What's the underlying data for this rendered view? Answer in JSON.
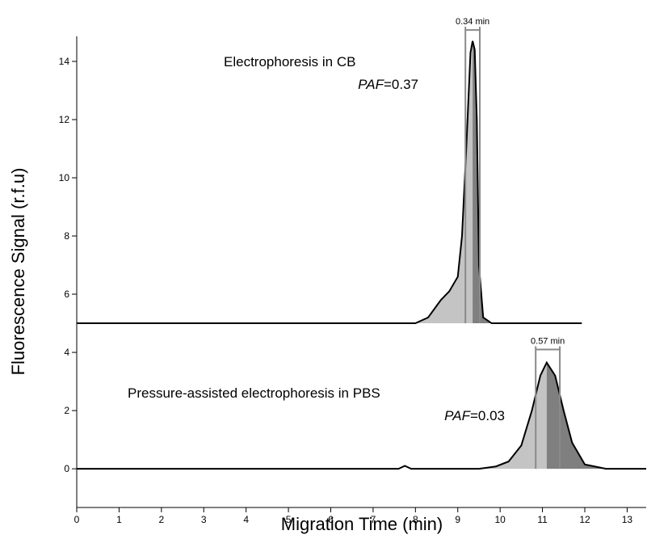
{
  "chart_data": {
    "type": "line",
    "xlabel": "Migration Time (min)",
    "ylabel": "Fluorescence Signal (r.f.u)",
    "xlim": [
      0,
      13.45
    ],
    "ylim": [
      -1.33,
      14.86
    ],
    "xticks": [
      0,
      1,
      2,
      3,
      4,
      5,
      6,
      7,
      8,
      9,
      10,
      11,
      12,
      13
    ],
    "yticks": [
      0,
      2,
      4,
      6,
      8,
      10,
      12,
      14
    ],
    "series": [
      {
        "name": "Electrophoresis in CB",
        "color": "#000000",
        "x": [
          0,
          8.0,
          8.3,
          8.6,
          8.8,
          9.0,
          9.1,
          9.2,
          9.3,
          9.35,
          9.4,
          9.45,
          9.5,
          9.6,
          9.8,
          11.93
        ],
        "values": [
          5,
          5,
          5.2,
          5.8,
          6.1,
          6.6,
          8,
          11,
          14.3,
          14.7,
          14.4,
          12,
          7,
          5.2,
          5,
          5
        ]
      },
      {
        "name": "Pressure-assisted electrophoresis in PBS",
        "color": "#000000",
        "x": [
          0,
          7.6,
          7.75,
          7.9,
          9.5,
          9.9,
          10.2,
          10.5,
          10.75,
          10.95,
          11.1,
          11.3,
          11.5,
          11.7,
          12.0,
          12.5,
          13.45
        ],
        "values": [
          0,
          0,
          0.1,
          0,
          0,
          0.08,
          0.25,
          0.8,
          2.0,
          3.2,
          3.65,
          3.2,
          2.0,
          0.9,
          0.15,
          0,
          0
        ]
      }
    ],
    "annotations": [
      {
        "text": "Electrophoresis in CB",
        "italic": "PAF",
        "value_text": "=0.37",
        "bracket_label": "0.34 min",
        "bracket_x": [
          9.18,
          9.52
        ],
        "bracket_y": 15.08
      },
      {
        "text": "Pressure-assisted electrophoresis in PBS",
        "italic": "PAF",
        "value_text": "=0.03",
        "bracket_label": "0.57 min",
        "bracket_x": [
          10.84,
          11.41
        ],
        "bracket_y": 4.1
      }
    ]
  }
}
